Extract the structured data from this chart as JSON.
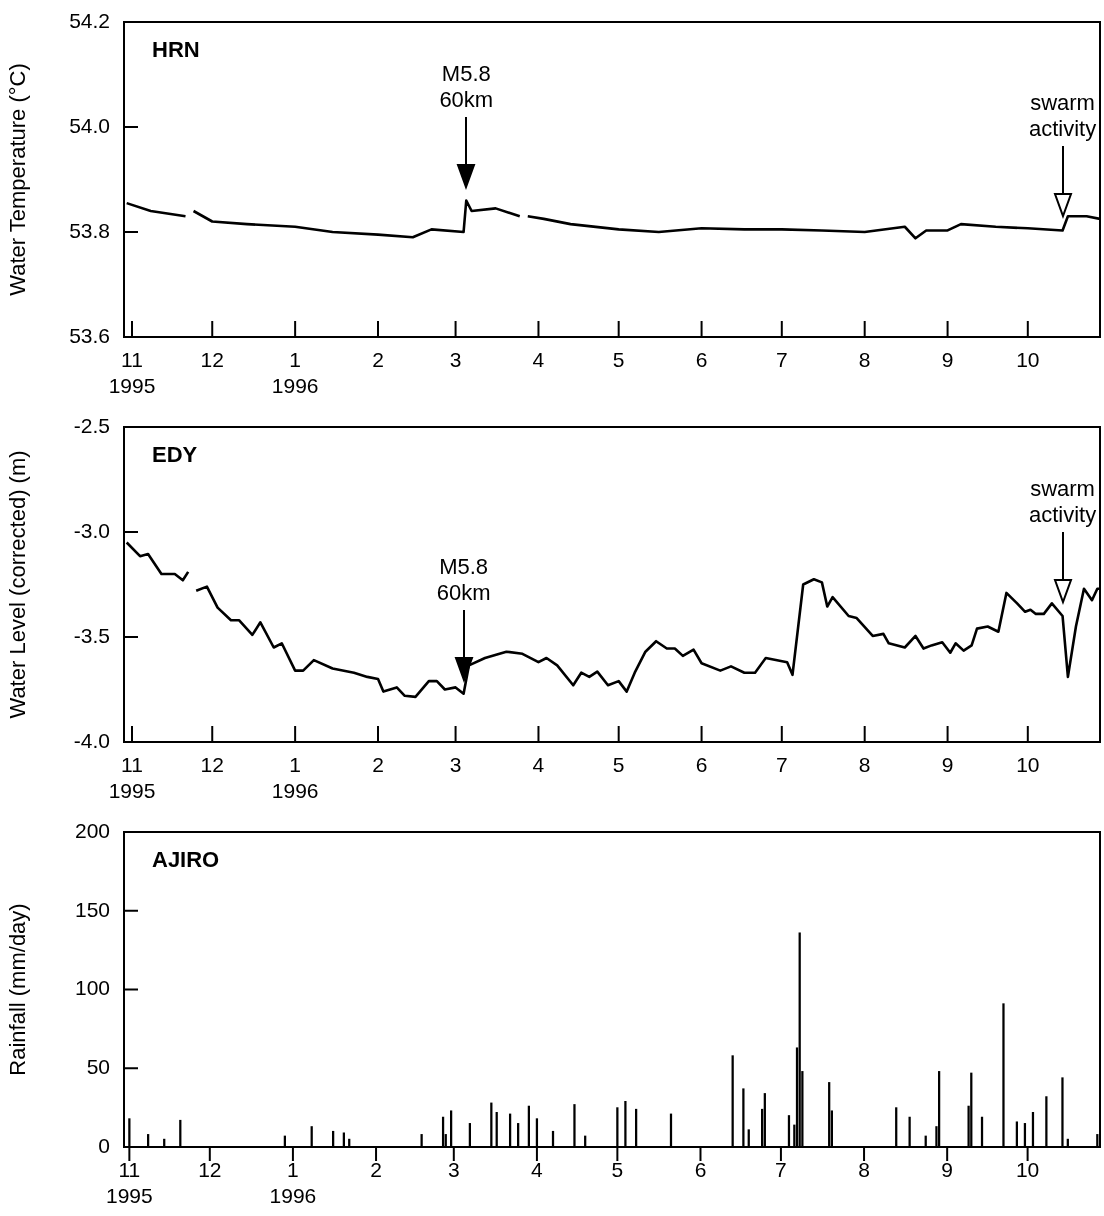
{
  "chart_data": [
    {
      "type": "line",
      "title": "HRN",
      "ylabel": "Water Temperature (°C)",
      "color": "#000000",
      "x": [
        "1995-10-30",
        "1995-11-08",
        "1995-11-21",
        "1995-11-23",
        "1995-11-24",
        "1995-12-01",
        "1995-12-14",
        "1996-01-01",
        "1996-01-15",
        "1996-02-01",
        "1996-02-14",
        "1996-02-21",
        "1996-03-04",
        "1996-03-05",
        "1996-03-07",
        "1996-03-16",
        "1996-03-25",
        "1996-03-27",
        "1996-03-28",
        "1996-04-03",
        "1996-04-13",
        "1996-05-01",
        "1996-05-16",
        "1996-06-01",
        "1996-06-17",
        "1996-07-01",
        "1996-07-16",
        "1996-08-01",
        "1996-08-16",
        "1996-08-20",
        "1996-08-24",
        "1996-09-01",
        "1996-09-06",
        "1996-09-19",
        "1996-10-01",
        "1996-10-14",
        "1996-10-16",
        "1996-10-23",
        "1996-10-28"
      ],
      "values": [
        53.855,
        53.84,
        53.83,
        null,
        53.84,
        53.82,
        53.815,
        53.81,
        53.8,
        53.795,
        53.79,
        53.805,
        53.8,
        53.86,
        53.84,
        53.845,
        53.83,
        null,
        53.83,
        53.825,
        53.815,
        53.805,
        53.8,
        53.807,
        53.805,
        53.805,
        53.803,
        53.8,
        53.81,
        53.788,
        53.803,
        53.803,
        53.815,
        53.81,
        53.807,
        53.803,
        53.83,
        53.83,
        53.825
      ],
      "xlim": [
        "1995-10-29",
        "1996-10-28"
      ],
      "xticks": [
        {
          "value": "1995-11-01",
          "label": "11\n1995"
        },
        {
          "value": "1995-12-01",
          "label": "12"
        },
        {
          "value": "1996-01-01",
          "label": "1\n1996"
        },
        {
          "value": "1996-02-01",
          "label": "2"
        },
        {
          "value": "1996-03-01",
          "label": "3"
        },
        {
          "value": "1996-04-01",
          "label": "4"
        },
        {
          "value": "1996-05-01",
          "label": "5"
        },
        {
          "value": "1996-06-01",
          "label": "6"
        },
        {
          "value": "1996-07-01",
          "label": "7"
        },
        {
          "value": "1996-08-01",
          "label": "8"
        },
        {
          "value": "1996-09-01",
          "label": "9"
        },
        {
          "value": "1996-10-01",
          "label": "10"
        }
      ],
      "ylim": [
        53.6,
        54.2
      ],
      "yticks": [
        {
          "value": 53.6,
          "label": "53.6"
        },
        {
          "value": 53.8,
          "label": "53.8"
        },
        {
          "value": 54.0,
          "label": "54.0"
        },
        {
          "value": 54.2,
          "label": "54.2"
        }
      ],
      "ref_lines": [
        {
          "axis": "x",
          "value": "1996-03-05",
          "label": "M5.8\n60km"
        },
        {
          "axis": "x",
          "value": "1996-10-14",
          "label": "swarm\nactivity"
        }
      ]
    },
    {
      "type": "line",
      "title": "EDY",
      "ylabel": "Water Level (corrected) (m)",
      "color": "#000000",
      "x": [
        "1995-10-30",
        "1995-11-04",
        "1995-11-07",
        "1995-11-12",
        "1995-11-17",
        "1995-11-20",
        "1995-11-22",
        "1995-11-24",
        "1995-11-25",
        "1995-11-29",
        "1995-12-03",
        "1995-12-08",
        "1995-12-11",
        "1995-12-16",
        "1995-12-19",
        "1995-12-24",
        "1995-12-27",
        "1996-01-01",
        "1996-01-04",
        "1996-01-08",
        "1996-01-15",
        "1996-01-23",
        "1996-01-28",
        "1996-02-01",
        "1996-02-03",
        "1996-02-08",
        "1996-02-11",
        "1996-02-15",
        "1996-02-20",
        "1996-02-23",
        "1996-02-26",
        "1996-03-01",
        "1996-03-04",
        "1996-03-06",
        "1996-03-12",
        "1996-03-20",
        "1996-03-26",
        "1996-04-01",
        "1996-04-04",
        "1996-04-08",
        "1996-04-14",
        "1996-04-17",
        "1996-04-20",
        "1996-04-23",
        "1996-04-27",
        "1996-05-01",
        "1996-05-04",
        "1996-05-07",
        "1996-05-11",
        "1996-05-15",
        "1996-05-19",
        "1996-05-22",
        "1996-05-25",
        "1996-05-29",
        "1996-06-01",
        "1996-06-08",
        "1996-06-12",
        "1996-06-17",
        "1996-06-21",
        "1996-06-25",
        "1996-07-03",
        "1996-07-05",
        "1996-07-09",
        "1996-07-13",
        "1996-07-16",
        "1996-07-18",
        "1996-07-20",
        "1996-07-26",
        "1996-07-29",
        "1996-08-04",
        "1996-08-08",
        "1996-08-10",
        "1996-08-16",
        "1996-08-20",
        "1996-08-23",
        "1996-08-26",
        "1996-08-30",
        "1996-09-02",
        "1996-09-04",
        "1996-09-07",
        "1996-09-10",
        "1996-09-12",
        "1996-09-16",
        "1996-09-20",
        "1996-09-23",
        "1996-09-27",
        "1996-09-30",
        "1996-10-02",
        "1996-10-04",
        "1996-10-07",
        "1996-10-10",
        "1996-10-14",
        "1996-10-16",
        "1996-10-19",
        "1996-10-22",
        "1996-10-25",
        "1996-10-27",
        "1996-10-28"
      ],
      "values": [
        -3.05,
        -3.115,
        -3.105,
        -3.2,
        -3.2,
        -3.23,
        -3.19,
        null,
        -3.28,
        -3.26,
        -3.36,
        -3.42,
        -3.42,
        -3.49,
        -3.43,
        -3.55,
        -3.53,
        -3.66,
        -3.66,
        -3.61,
        -3.65,
        -3.67,
        -3.69,
        -3.7,
        -3.76,
        -3.74,
        -3.78,
        -3.785,
        -3.71,
        -3.71,
        -3.75,
        -3.74,
        -3.77,
        -3.635,
        -3.6,
        -3.57,
        -3.58,
        -3.62,
        -3.6,
        -3.635,
        -3.73,
        -3.67,
        -3.69,
        -3.665,
        -3.73,
        -3.71,
        -3.76,
        -3.67,
        -3.57,
        -3.52,
        -3.555,
        -3.555,
        -3.59,
        -3.56,
        -3.625,
        -3.66,
        -3.64,
        -3.67,
        -3.67,
        -3.6,
        -3.62,
        -3.68,
        -3.25,
        -3.225,
        -3.24,
        -3.355,
        -3.31,
        -3.4,
        -3.41,
        -3.495,
        -3.485,
        -3.53,
        -3.55,
        -3.495,
        -3.555,
        -3.54,
        -3.525,
        -3.575,
        -3.53,
        -3.565,
        -3.54,
        -3.46,
        -3.45,
        -3.475,
        -3.29,
        -3.34,
        -3.38,
        -3.37,
        -3.39,
        -3.39,
        -3.34,
        -3.4,
        -3.69,
        -3.45,
        -3.27,
        -3.325,
        -3.27,
        -3.27
      ],
      "xlim": [
        "1995-10-29",
        "1996-10-28"
      ],
      "xticks": [
        {
          "value": "1995-11-01",
          "label": "11\n1995"
        },
        {
          "value": "1995-12-01",
          "label": "12"
        },
        {
          "value": "1996-01-01",
          "label": "1\n1996"
        },
        {
          "value": "1996-02-01",
          "label": "2"
        },
        {
          "value": "1996-03-01",
          "label": "3"
        },
        {
          "value": "1996-04-01",
          "label": "4"
        },
        {
          "value": "1996-05-01",
          "label": "5"
        },
        {
          "value": "1996-06-01",
          "label": "6"
        },
        {
          "value": "1996-07-01",
          "label": "7"
        },
        {
          "value": "1996-08-01",
          "label": "8"
        },
        {
          "value": "1996-09-01",
          "label": "9"
        },
        {
          "value": "1996-10-01",
          "label": "10"
        }
      ],
      "ylim": [
        -4.0,
        -2.5
      ],
      "yticks": [
        {
          "value": -4.0,
          "label": "-4.0"
        },
        {
          "value": -3.5,
          "label": "-3.5"
        },
        {
          "value": -3.0,
          "label": "-3.0"
        },
        {
          "value": -2.5,
          "label": "-2.5"
        }
      ],
      "ref_lines": [
        {
          "axis": "x",
          "value": "1996-03-04",
          "label": "M5.8\n60km"
        },
        {
          "axis": "x",
          "value": "1996-10-14",
          "label": "swarm\nactivity"
        }
      ]
    },
    {
      "type": "bar",
      "title": "AJIRO",
      "ylabel": "Rainfall (mm/day)",
      "color": "#000000",
      "x": [
        "1995-11-01",
        "1995-11-08",
        "1995-11-14",
        "1995-11-20",
        "1995-12-29",
        "1996-01-08",
        "1996-01-16",
        "1996-01-20",
        "1996-01-22",
        "1996-02-18",
        "1996-02-26",
        "1996-02-27",
        "1996-02-29",
        "1996-03-07",
        "1996-03-15",
        "1996-03-17",
        "1996-03-22",
        "1996-03-25",
        "1996-03-29",
        "1996-04-01",
        "1996-04-07",
        "1996-04-15",
        "1996-04-19",
        "1996-05-01",
        "1996-05-04",
        "1996-05-08",
        "1996-05-21",
        "1996-06-13",
        "1996-06-17",
        "1996-06-19",
        "1996-06-24",
        "1996-06-25",
        "1996-07-04",
        "1996-07-06",
        "1996-07-07",
        "1996-07-08",
        "1996-07-09",
        "1996-07-19",
        "1996-07-20",
        "1996-08-13",
        "1996-08-18",
        "1996-08-24",
        "1996-08-28",
        "1996-08-29",
        "1996-09-09",
        "1996-09-10",
        "1996-09-14",
        "1996-09-22",
        "1996-09-27",
        "1996-09-30",
        "1996-10-03",
        "1996-10-08",
        "1996-10-14",
        "1996-10-16",
        "1996-10-27"
      ],
      "values": [
        18,
        8,
        5,
        17,
        7,
        13,
        10,
        9,
        5,
        8,
        19,
        8,
        23,
        15,
        28,
        22,
        21,
        15,
        26,
        18,
        10,
        27,
        7,
        25,
        29,
        24,
        21,
        58,
        37,
        11,
        24,
        34,
        20,
        14,
        63,
        136,
        48,
        41,
        23,
        25,
        19,
        7,
        13,
        48,
        26,
        47,
        19,
        91,
        16,
        15,
        22,
        32,
        44,
        5,
        8
      ],
      "xlim": [
        "1995-10-30",
        "1996-10-28"
      ],
      "xticks": [
        {
          "value": "1995-11-01",
          "label": "11\n1995"
        },
        {
          "value": "1995-12-01",
          "label": "12"
        },
        {
          "value": "1996-01-01",
          "label": "1\n1996"
        },
        {
          "value": "1996-02-01",
          "label": "2"
        },
        {
          "value": "1996-03-01",
          "label": "3"
        },
        {
          "value": "1996-04-01",
          "label": "4"
        },
        {
          "value": "1996-05-01",
          "label": "5"
        },
        {
          "value": "1996-06-01",
          "label": "6"
        },
        {
          "value": "1996-07-01",
          "label": "7"
        },
        {
          "value": "1996-08-01",
          "label": "8"
        },
        {
          "value": "1996-09-01",
          "label": "9"
        },
        {
          "value": "1996-10-01",
          "label": "10"
        }
      ],
      "ylim": [
        0,
        200
      ],
      "yticks": [
        0,
        50,
        100,
        150,
        200
      ]
    }
  ]
}
